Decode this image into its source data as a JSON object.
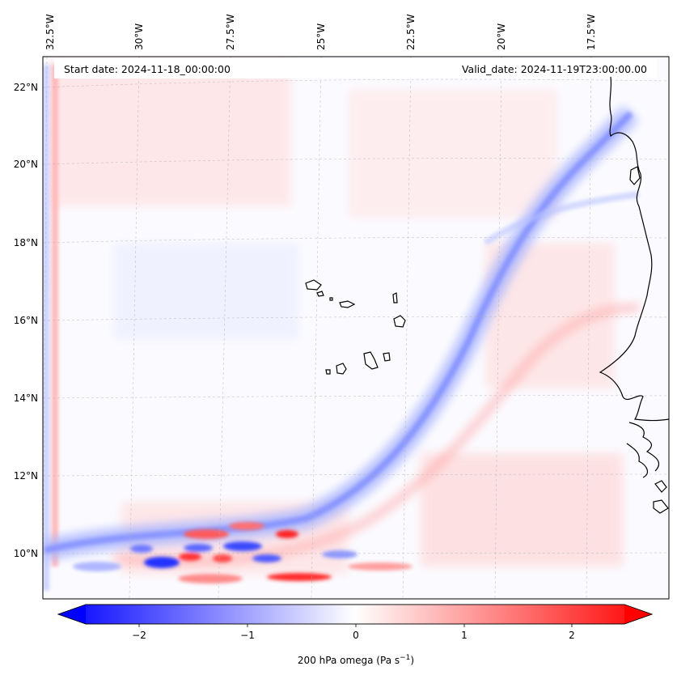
{
  "map": {
    "header": {
      "start_date": "Start date: 2024-11-18_00:00:00",
      "valid_date": "Valid_date: 2024-11-19T23:00:00.00"
    },
    "lon_labels": [
      "32.5°W",
      "30°W",
      "27.5°W",
      "25°W",
      "22.5°W",
      "20°W",
      "17.5°W"
    ],
    "lat_labels": [
      "22°N",
      "20°N",
      "18°N",
      "16°N",
      "14°N",
      "12°N",
      "10°N"
    ],
    "gridlines": true,
    "features": [
      "Cape Verde islands",
      "West African coastline"
    ]
  },
  "colorbar": {
    "ticks": [
      "−2",
      "−1",
      "0",
      "1",
      "2"
    ],
    "label": "200 hPa omega (Pa s",
    "label_sup": "−1",
    "label_end": ")",
    "colormap": "bwr",
    "range": [
      -2.6,
      2.6
    ],
    "extend": "both"
  },
  "colors": {
    "negative": "#0000ff",
    "neutral": "#ffffff",
    "positive": "#ff0000",
    "coast": "#000000"
  }
}
